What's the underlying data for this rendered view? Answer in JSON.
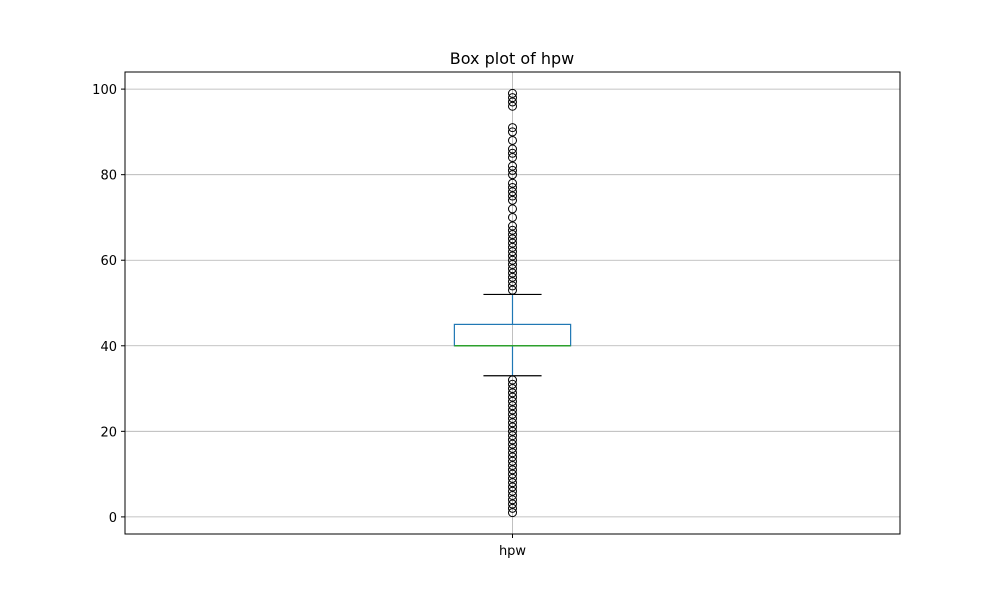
{
  "chart_data": {
    "type": "box",
    "title": "Box plot of hpw",
    "xlabel": "",
    "ylabel": "",
    "categories": [
      "hpw"
    ],
    "ylim": [
      -4,
      104
    ],
    "yticks": [
      0,
      20,
      40,
      60,
      80,
      100
    ],
    "grid": true,
    "series": [
      {
        "category": "hpw",
        "whisker_low": 33,
        "q1": 40,
        "median": 40,
        "q3": 45,
        "whisker_high": 52,
        "outliers": [
          1,
          2,
          3,
          4,
          5,
          6,
          7,
          8,
          9,
          10,
          11,
          12,
          13,
          14,
          15,
          16,
          17,
          18,
          19,
          20,
          21,
          22,
          23,
          24,
          25,
          26,
          27,
          28,
          29,
          30,
          31,
          32,
          53,
          54,
          55,
          56,
          57,
          58,
          59,
          60,
          61,
          62,
          63,
          64,
          65,
          66,
          67,
          68,
          70,
          72,
          74,
          75,
          76,
          77,
          78,
          80,
          81,
          82,
          84,
          85,
          86,
          88,
          90,
          91,
          96,
          97,
          98,
          99
        ]
      }
    ]
  },
  "colors": {
    "box": "#1f77b4",
    "median": "#2ca02c",
    "whisker_cap": "#000000",
    "outlier": "#000000",
    "grid": "#b0b0b0",
    "axes": "#000000"
  }
}
